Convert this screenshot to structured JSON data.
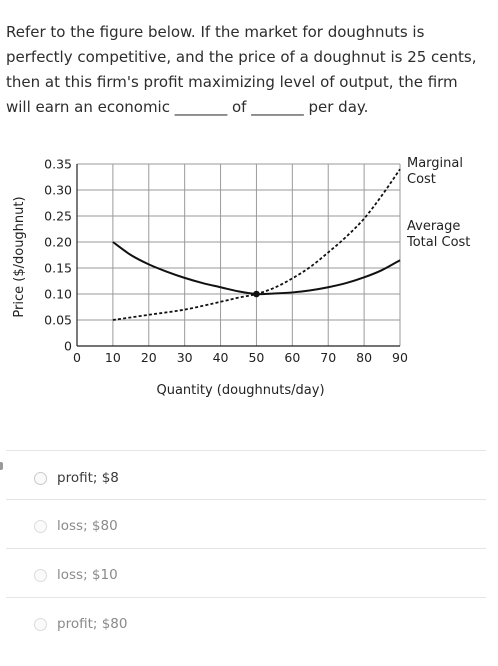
{
  "question": {
    "text": "Refer to the figure below. If the market for doughnuts is perfectly competitive, and the price of a doughnut is 25 cents, then at this firm's profit maximizing level of output, the firm will earn an economic _______ of _______ per day."
  },
  "chart_data": {
    "type": "line",
    "title": "",
    "xlabel": "Quantity (doughnuts/day)",
    "ylabel": "Price ($/doughnut)",
    "xlim": [
      0,
      90
    ],
    "ylim": [
      0,
      0.35
    ],
    "grid": true,
    "x_ticks": [
      "0",
      "10",
      "20",
      "30",
      "40",
      "50",
      "60",
      "70",
      "80",
      "90"
    ],
    "y_ticks": [
      "0",
      "0.05",
      "0.10",
      "0.15",
      "0.20",
      "0.25",
      "0.30",
      "0.35"
    ],
    "series": [
      {
        "name": "Marginal Cost",
        "style": "dashed",
        "x": [
          10,
          20,
          30,
          40,
          45,
          50,
          55,
          60,
          65,
          70,
          75,
          80,
          85,
          90
        ],
        "y": [
          0.05,
          0.06,
          0.07,
          0.085,
          0.093,
          0.1,
          0.112,
          0.13,
          0.152,
          0.18,
          0.21,
          0.245,
          0.29,
          0.34
        ]
      },
      {
        "name": "Average Total Cost",
        "style": "solid",
        "x": [
          10,
          15,
          20,
          25,
          30,
          35,
          40,
          45,
          50,
          55,
          60,
          65,
          70,
          75,
          80,
          85,
          90
        ],
        "y": [
          0.2,
          0.175,
          0.157,
          0.143,
          0.131,
          0.121,
          0.113,
          0.105,
          0.1,
          0.101,
          0.103,
          0.107,
          0.113,
          0.121,
          0.132,
          0.146,
          0.165
        ]
      }
    ],
    "marker": {
      "x": 50,
      "y": 0.1
    },
    "series_colors": {
      "line": "#111111",
      "grid": "#9a9a9a"
    }
  },
  "options": [
    {
      "label": "profit; $8"
    },
    {
      "label": "loss; $80"
    },
    {
      "label": "loss; $10"
    },
    {
      "label": "profit; $80"
    }
  ]
}
